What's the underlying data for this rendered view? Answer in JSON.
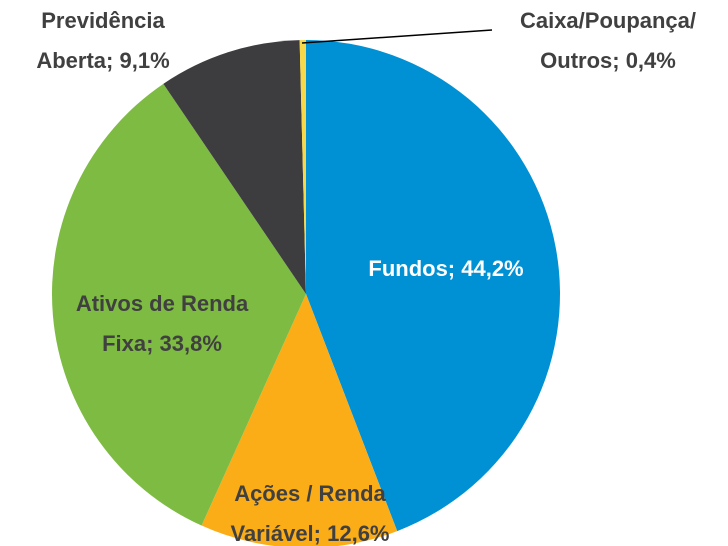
{
  "chart_data": {
    "type": "pie",
    "values": [
      44.2,
      12.6,
      33.8,
      9.1,
      0.4
    ],
    "value_labels": [
      [
        "Fundos; 44,2%"
      ],
      [
        "Ações / Renda",
        "Variável; 12,6%"
      ],
      [
        "Ativos de Renda",
        "Fixa; 33,8%"
      ],
      [
        "Previdência",
        "Aberta; 9,1%"
      ],
      [
        "Caixa/Poupança/",
        "Outros; 0,4%"
      ]
    ],
    "colors": [
      "#0091d5",
      "#fbad18",
      "#7dbb42",
      "#3d3d3f",
      "#f7d84a"
    ]
  }
}
